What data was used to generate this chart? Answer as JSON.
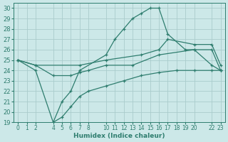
{
  "xlabel": "Humidex (Indice chaleur)",
  "ylabel": "",
  "xlim": [
    -0.5,
    23.5
  ],
  "ylim": [
    19,
    30.5
  ],
  "xticks": [
    0,
    1,
    2,
    4,
    5,
    6,
    7,
    8,
    10,
    11,
    12,
    13,
    14,
    15,
    16,
    17,
    18,
    19,
    20,
    22,
    23
  ],
  "yticks": [
    19,
    20,
    21,
    22,
    23,
    24,
    25,
    26,
    27,
    28,
    29,
    30
  ],
  "bg_color": "#cce8e8",
  "grid_color": "#aacccc",
  "line_color": "#2e7d6e",
  "lines": [
    {
      "x": [
        0,
        2,
        4,
        5,
        6,
        7,
        10,
        11,
        12,
        13,
        14,
        15,
        16,
        17,
        19,
        20,
        22,
        23
      ],
      "y": [
        25,
        24,
        19,
        21,
        22,
        24,
        25.5,
        27,
        28,
        29,
        29.5,
        30,
        30,
        27.5,
        26,
        26,
        24.5,
        24
      ]
    },
    {
      "x": [
        0,
        2,
        7,
        10,
        14,
        16,
        17,
        20,
        22,
        23
      ],
      "y": [
        25,
        24.5,
        24.5,
        25,
        25.5,
        26,
        27,
        26.5,
        26.5,
        24.5
      ]
    },
    {
      "x": [
        0,
        2,
        4,
        6,
        7,
        8,
        10,
        13,
        16,
        20,
        22,
        23
      ],
      "y": [
        25,
        24.5,
        23.5,
        23.5,
        23.8,
        24,
        24.5,
        24.5,
        25.5,
        26,
        26,
        24
      ]
    },
    {
      "x": [
        4,
        5,
        6,
        7,
        8,
        10,
        12,
        14,
        16,
        18,
        20,
        22,
        23
      ],
      "y": [
        19,
        19.5,
        20.5,
        21.5,
        22,
        22.5,
        23,
        23.5,
        23.8,
        24,
        24,
        24,
        24
      ]
    }
  ]
}
